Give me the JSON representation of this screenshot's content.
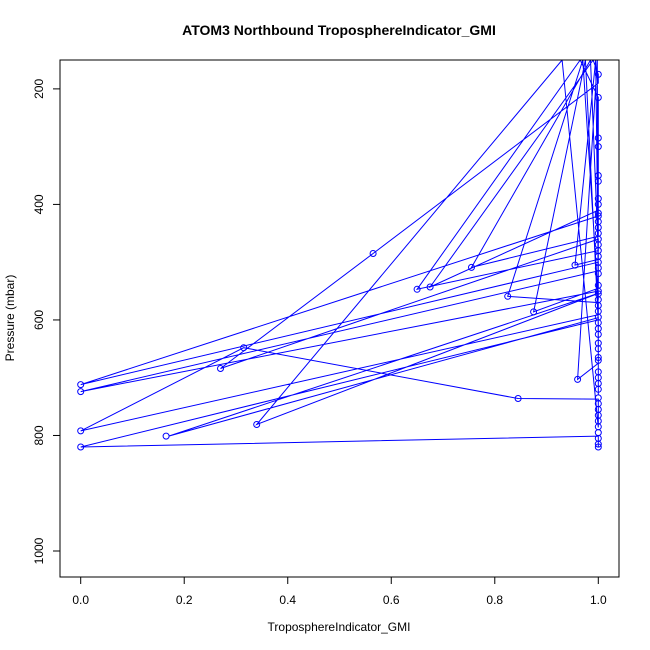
{
  "chart_data": {
    "type": "line",
    "title": "ATOM3 Northbound TroposphereIndicator_GMI",
    "xlabel": "TroposphereIndicator_GMI",
    "ylabel": "Pressure (mbar)",
    "xlim": [
      -0.04,
      1.04
    ],
    "ylim": [
      1045,
      150
    ],
    "y_reversed": true,
    "grid": false,
    "x_ticks": [
      0.0,
      0.2,
      0.4,
      0.6,
      0.8,
      1.0
    ],
    "x_tick_labels": [
      "0.0",
      "0.2",
      "0.4",
      "0.6",
      "0.8",
      "1.0"
    ],
    "y_ticks": [
      200,
      400,
      600,
      800,
      1000
    ],
    "y_tick_labels": [
      "200",
      "400",
      "600",
      "800",
      "1000"
    ],
    "color": "#0000ff",
    "series": [
      {
        "points": [
          [
            1.0,
            820
          ],
          [
            1.0,
            816
          ],
          [
            1.0,
            811
          ],
          [
            1.0,
            806
          ],
          [
            1.0,
            801
          ],
          [
            0.0,
            820
          ],
          [
            1.0,
            600
          ],
          [
            1.0,
            596
          ],
          [
            0.17,
            801
          ],
          [
            1.0,
            554
          ],
          [
            0.34,
            781
          ],
          [
            0.93,
            150
          ],
          [
            1.0,
            786
          ],
          [
            1.0,
            781
          ],
          [
            1.0,
            776
          ],
          [
            1.0,
            771
          ],
          [
            1.0,
            766
          ],
          [
            1.0,
            761
          ],
          [
            1.0,
            756
          ],
          [
            1.0,
            751
          ],
          [
            1.0,
            746
          ],
          [
            1.0,
            741
          ],
          [
            1.0,
            737
          ],
          [
            0.845,
            736
          ],
          [
            0.315,
            648
          ],
          [
            0.0,
            792
          ],
          [
            1.0,
            591
          ],
          [
            1.0,
            585
          ],
          [
            1.0,
            580
          ],
          [
            1.0,
            575
          ],
          [
            1.0,
            570
          ],
          [
            0.825,
            559
          ],
          [
            0.97,
            150
          ],
          [
            1.0,
            565
          ],
          [
            1.0,
            560
          ],
          [
            1.0,
            555
          ],
          [
            1.0,
            550
          ],
          [
            0.0,
            724
          ],
          [
            1.0,
            515
          ],
          [
            1.0,
            510
          ],
          [
            1.0,
            505
          ],
          [
            1.0,
            500
          ],
          [
            0.0,
            712
          ],
          [
            1.0,
            420
          ],
          [
            1.0,
            415
          ],
          [
            1.0,
            410
          ],
          [
            0.675,
            543
          ],
          [
            0.99,
            150
          ],
          [
            1.0,
            175
          ],
          [
            1.0,
            180
          ],
          [
            1.0,
            185
          ],
          [
            1.0,
            190
          ],
          [
            0.565,
            485
          ],
          [
            0.27,
            684
          ],
          [
            1.0,
            460
          ],
          [
            1.0,
            465
          ],
          [
            1.0,
            470
          ],
          [
            1.0,
            475
          ],
          [
            1.0,
            480
          ],
          [
            0.65,
            547
          ],
          [
            0.965,
            150
          ],
          [
            1.0,
            215
          ],
          [
            1.0,
            220
          ],
          [
            1.0,
            225
          ],
          [
            1.0,
            230
          ],
          [
            1.0,
            235
          ],
          [
            1.0,
            240
          ],
          [
            1.0,
            245
          ],
          [
            1.0,
            250
          ],
          [
            1.0,
            255
          ],
          [
            1.0,
            260
          ],
          [
            1.0,
            265
          ],
          [
            1.0,
            270
          ],
          [
            1.0,
            275
          ],
          [
            1.0,
            280
          ],
          [
            1.0,
            285
          ],
          [
            1.0,
            290
          ],
          [
            1.0,
            295
          ],
          [
            1.0,
            300
          ],
          [
            1.0,
            305
          ],
          [
            1.0,
            310
          ],
          [
            1.0,
            315
          ],
          [
            1.0,
            320
          ],
          [
            1.0,
            325
          ],
          [
            1.0,
            330
          ],
          [
            1.0,
            335
          ],
          [
            1.0,
            340
          ],
          [
            1.0,
            345
          ],
          [
            1.0,
            350
          ],
          [
            1.0,
            355
          ],
          [
            1.0,
            360
          ],
          [
            1.0,
            365
          ],
          [
            1.0,
            370
          ],
          [
            1.0,
            375
          ],
          [
            1.0,
            380
          ],
          [
            1.0,
            385
          ],
          [
            1.0,
            390
          ],
          [
            1.0,
            395
          ],
          [
            1.0,
            400
          ],
          [
            1.0,
            405
          ],
          [
            1.0,
            425
          ],
          [
            1.0,
            430
          ],
          [
            1.0,
            435
          ],
          [
            1.0,
            440
          ],
          [
            1.0,
            445
          ],
          [
            1.0,
            450
          ],
          [
            1.0,
            455
          ],
          [
            0.755,
            509
          ],
          [
            0.985,
            150
          ],
          [
            1.0,
            485
          ],
          [
            1.0,
            490
          ],
          [
            1.0,
            495
          ],
          [
            0.955,
            505
          ],
          [
            0.995,
            150
          ],
          [
            1.0,
            520
          ],
          [
            1.0,
            525
          ],
          [
            1.0,
            530
          ],
          [
            1.0,
            535
          ],
          [
            1.0,
            540
          ],
          [
            1.0,
            545
          ],
          [
            0.875,
            586
          ],
          [
            0.975,
            150
          ],
          [
            1.0,
            605
          ],
          [
            1.0,
            610
          ],
          [
            1.0,
            615
          ],
          [
            1.0,
            620
          ],
          [
            1.0,
            625
          ],
          [
            1.0,
            630
          ],
          [
            1.0,
            635
          ],
          [
            1.0,
            640
          ],
          [
            1.0,
            645
          ],
          [
            1.0,
            650
          ],
          [
            1.0,
            655
          ],
          [
            1.0,
            660
          ],
          [
            1.0,
            665
          ],
          [
            1.0,
            670
          ],
          [
            1.0,
            675
          ],
          [
            0.96,
            703
          ],
          [
            0.998,
            150
          ],
          [
            1.0,
            680
          ],
          [
            1.0,
            685
          ],
          [
            1.0,
            690
          ],
          [
            1.0,
            695
          ],
          [
            1.0,
            700
          ],
          [
            1.0,
            705
          ],
          [
            1.0,
            710
          ],
          [
            1.0,
            715
          ],
          [
            1.0,
            720
          ],
          [
            1.0,
            725
          ],
          [
            1.0,
            730
          ]
        ]
      }
    ],
    "markers": [
      [
        0.0,
        712
      ],
      [
        0.0,
        724
      ],
      [
        0.0,
        792
      ],
      [
        0.0,
        820
      ],
      [
        0.165,
        801
      ],
      [
        0.27,
        684
      ],
      [
        0.315,
        648
      ],
      [
        0.34,
        781
      ],
      [
        0.565,
        485
      ],
      [
        0.65,
        547
      ],
      [
        0.675,
        543
      ],
      [
        0.755,
        509
      ],
      [
        0.825,
        559
      ],
      [
        0.845,
        736
      ],
      [
        0.875,
        586
      ],
      [
        0.955,
        505
      ],
      [
        0.96,
        703
      ],
      [
        1.0,
        175
      ],
      [
        1.0,
        215
      ],
      [
        1.0,
        285
      ],
      [
        1.0,
        300
      ],
      [
        1.0,
        350
      ],
      [
        1.0,
        360
      ],
      [
        1.0,
        390
      ],
      [
        1.0,
        400
      ],
      [
        1.0,
        415
      ],
      [
        1.0,
        420
      ],
      [
        1.0,
        430
      ],
      [
        1.0,
        440
      ],
      [
        1.0,
        450
      ],
      [
        1.0,
        460
      ],
      [
        1.0,
        470
      ],
      [
        1.0,
        480
      ],
      [
        1.0,
        490
      ],
      [
        1.0,
        500
      ],
      [
        1.0,
        510
      ],
      [
        1.0,
        520
      ],
      [
        1.0,
        540
      ],
      [
        1.0,
        550
      ],
      [
        1.0,
        555
      ],
      [
        1.0,
        565
      ],
      [
        1.0,
        575
      ],
      [
        1.0,
        585
      ],
      [
        1.0,
        595
      ],
      [
        1.0,
        605
      ],
      [
        1.0,
        615
      ],
      [
        1.0,
        625
      ],
      [
        1.0,
        640
      ],
      [
        1.0,
        650
      ],
      [
        1.0,
        665
      ],
      [
        1.0,
        670
      ],
      [
        1.0,
        690
      ],
      [
        1.0,
        700
      ],
      [
        1.0,
        710
      ],
      [
        1.0,
        720
      ],
      [
        1.0,
        735
      ],
      [
        1.0,
        745
      ],
      [
        1.0,
        755
      ],
      [
        1.0,
        765
      ],
      [
        1.0,
        775
      ],
      [
        1.0,
        785
      ],
      [
        1.0,
        795
      ],
      [
        1.0,
        805
      ],
      [
        1.0,
        815
      ],
      [
        1.0,
        820
      ]
    ]
  }
}
